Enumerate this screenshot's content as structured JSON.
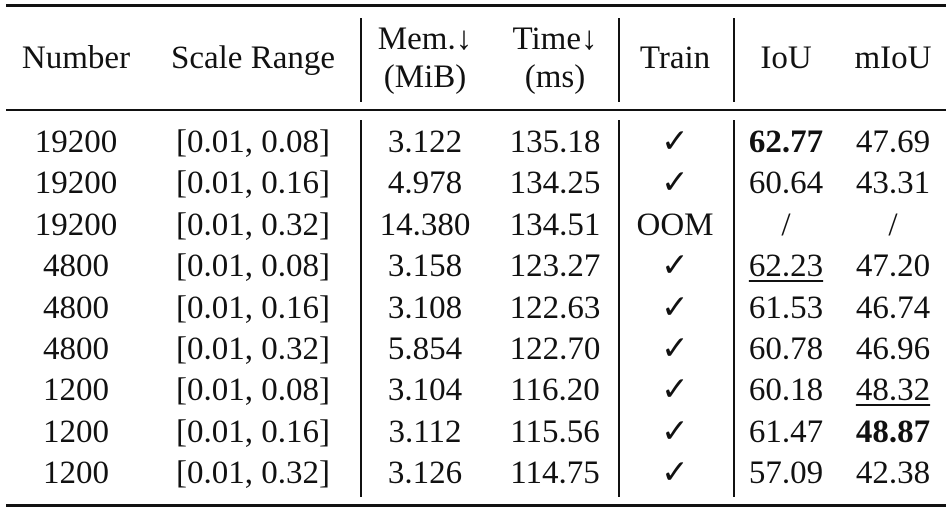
{
  "table": {
    "header": [
      [
        "Number"
      ],
      [
        "Scale Range"
      ],
      [
        "Mem.↓",
        "(MiB)"
      ],
      [
        "Time↓",
        "(ms)"
      ],
      [
        "Train"
      ],
      [
        "IoU"
      ],
      [
        "mIoU"
      ]
    ],
    "rows": [
      [
        "19200",
        "[0.01, 0.08]",
        "3.122",
        "135.18",
        "✓",
        "62.77",
        "47.69"
      ],
      [
        "19200",
        "[0.01, 0.16]",
        "4.978",
        "134.25",
        "✓",
        "60.64",
        "43.31"
      ],
      [
        "19200",
        "[0.01, 0.32]",
        "14.380",
        "134.51",
        "OOM",
        "/",
        "/"
      ],
      [
        "4800",
        "[0.01, 0.08]",
        "3.158",
        "123.27",
        "✓",
        "62.23",
        "47.20"
      ],
      [
        "4800",
        "[0.01, 0.16]",
        "3.108",
        "122.63",
        "✓",
        "61.53",
        "46.74"
      ],
      [
        "4800",
        "[0.01, 0.32]",
        "5.854",
        "122.70",
        "✓",
        "60.78",
        "46.96"
      ],
      [
        "1200",
        "[0.01, 0.08]",
        "3.104",
        "116.20",
        "✓",
        "60.18",
        "48.32"
      ],
      [
        "1200",
        "[0.01, 0.16]",
        "3.112",
        "115.56",
        "✓",
        "61.47",
        "48.87"
      ],
      [
        "1200",
        "[0.01, 0.32]",
        "3.126",
        "114.75",
        "✓",
        "57.09",
        "42.38"
      ]
    ]
  }
}
